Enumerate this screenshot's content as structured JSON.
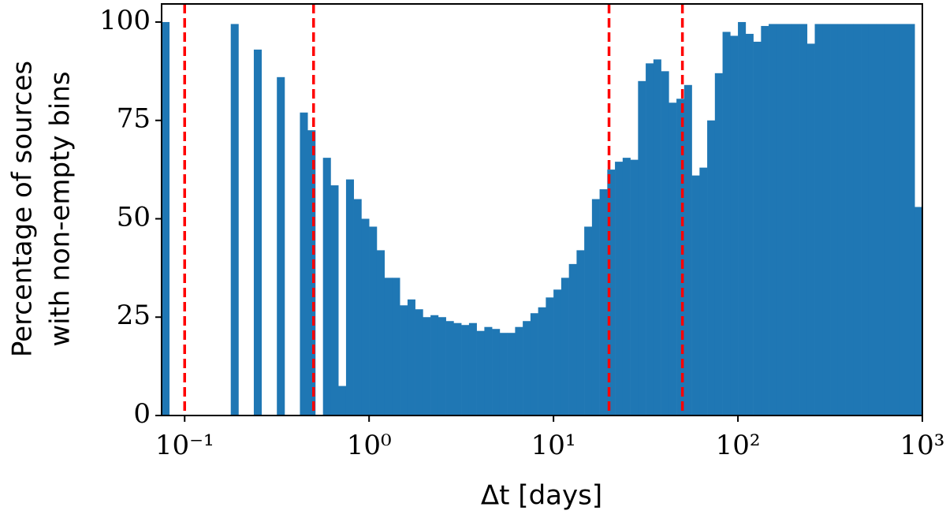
{
  "chart_data": {
    "type": "histogram",
    "xlabel": "Δt [days]",
    "ylabel": [
      "Percentage of sources",
      "with non-empty bins"
    ],
    "xscale": "log",
    "color": "#1f77b4",
    "bins": [
      0.07499,
      0.08254,
      0.09085,
      0.1,
      0.1101,
      0.1212,
      0.1334,
      0.1468,
      0.1616,
      0.1778,
      0.1957,
      0.2154,
      0.2371,
      0.261,
      0.2873,
      0.3162,
      0.3481,
      0.3831,
      0.4217,
      0.4642,
      0.5109,
      0.5623,
      0.619,
      0.6813,
      0.7499,
      0.8254,
      0.9085,
      1,
      1.101,
      1.212,
      1.334,
      1.468,
      1.616,
      1.778,
      1.957,
      2.154,
      2.371,
      2.61,
      2.873,
      3.162,
      3.481,
      3.831,
      4.217,
      4.642,
      5.109,
      5.623,
      6.19,
      6.813,
      7.499,
      8.254,
      9.085,
      10,
      11.01,
      12.12,
      13.34,
      14.68,
      16.16,
      17.78,
      19.57,
      21.54,
      23.71,
      26.1,
      28.73,
      31.62,
      34.81,
      38.31,
      42.17,
      46.42,
      51.09,
      56.23,
      61.9,
      68.13,
      74.99,
      82.54,
      90.85,
      100,
      110.1,
      121.2,
      133.4,
      146.8,
      161.6,
      177.8,
      195.7,
      215.4,
      237.1,
      261,
      287.3,
      316.2,
      348.1,
      383.1,
      421.7,
      464.2,
      510.9,
      562.3,
      619,
      681.3,
      749.9,
      825.4,
      908.5,
      1000
    ],
    "values": [
      100,
      0,
      0,
      0,
      0,
      0,
      0,
      0,
      0,
      99.5,
      0,
      0,
      93,
      0,
      0,
      86,
      0,
      0,
      77,
      72.5,
      0,
      65.5,
      58.5,
      7.5,
      60,
      55,
      50,
      48,
      42,
      35,
      35,
      28,
      29.5,
      27,
      25,
      25.5,
      25,
      24,
      23.5,
      23,
      23.5,
      21.5,
      22.5,
      22,
      21,
      21,
      22.5,
      24,
      26,
      27.5,
      30,
      32,
      35,
      38.5,
      42,
      48,
      55,
      57.5,
      62.5,
      64.5,
      65.5,
      65,
      85,
      89.5,
      90.5,
      87.5,
      79.5,
      80.5,
      84,
      61,
      63,
      75,
      87,
      97.5,
      96.5,
      100,
      97,
      95,
      99,
      99.5,
      99.5,
      99.5,
      99.5,
      99.5,
      94.5,
      99.5,
      99.5,
      99.5,
      99.5,
      99.5,
      99.5,
      99.5,
      99.5,
      99.5,
      99.5,
      99.5,
      99.5,
      99.5,
      53
    ],
    "vlines": [
      0.1,
      0.5,
      20,
      50
    ],
    "vline_color": "#ff0000",
    "xlim": [
      0.07499,
      1000
    ],
    "ylim": [
      0,
      104.6
    ],
    "xticks": [
      {
        "value": 0.1,
        "label": "10⁻¹"
      },
      {
        "value": 1,
        "label": "10⁰"
      },
      {
        "value": 10,
        "label": "10¹"
      },
      {
        "value": 100,
        "label": "10²"
      },
      {
        "value": 1000,
        "label": "10³"
      }
    ],
    "yticks": [
      0,
      25,
      50,
      75,
      100
    ]
  }
}
